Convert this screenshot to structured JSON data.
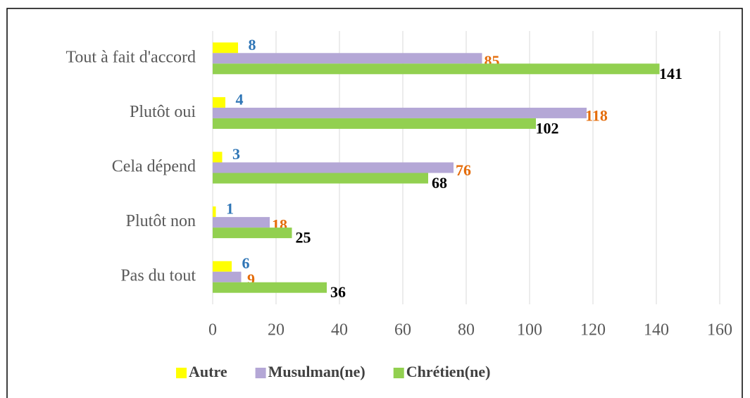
{
  "chart_data": {
    "type": "bar",
    "orientation": "horizontal",
    "categories": [
      "Tout à fait d'accord",
      "Plutôt oui",
      "Cela dépend",
      "Plutôt non",
      "Pas du tout"
    ],
    "series": [
      {
        "name": "Autre",
        "color": "#ffff00",
        "label_color": "#2e75b6",
        "values": [
          8,
          4,
          3,
          1,
          6
        ]
      },
      {
        "name": "Musulman(ne)",
        "color": "#b4a7d6",
        "label_color": "#e46c0a",
        "values": [
          85,
          118,
          76,
          18,
          9
        ]
      },
      {
        "name": "Chrétien(ne)",
        "color": "#92d050",
        "label_color": "#000000",
        "values": [
          141,
          102,
          68,
          25,
          36
        ]
      }
    ],
    "xlim": [
      0,
      160
    ],
    "xticks": [
      0,
      20,
      40,
      60,
      80,
      100,
      120,
      140,
      160
    ],
    "grid": true,
    "legend": "bottom"
  }
}
